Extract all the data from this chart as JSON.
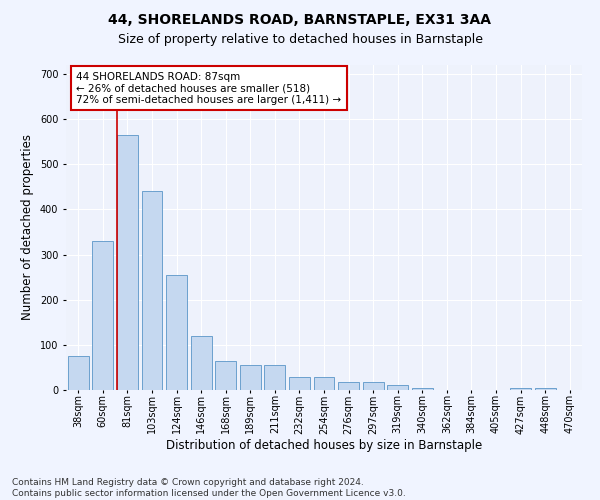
{
  "title": "44, SHORELANDS ROAD, BARNSTAPLE, EX31 3AA",
  "subtitle": "Size of property relative to detached houses in Barnstaple",
  "xlabel": "Distribution of detached houses by size in Barnstaple",
  "ylabel": "Number of detached properties",
  "categories": [
    "38sqm",
    "60sqm",
    "81sqm",
    "103sqm",
    "124sqm",
    "146sqm",
    "168sqm",
    "189sqm",
    "211sqm",
    "232sqm",
    "254sqm",
    "276sqm",
    "297sqm",
    "319sqm",
    "340sqm",
    "362sqm",
    "384sqm",
    "405sqm",
    "427sqm",
    "448sqm",
    "470sqm"
  ],
  "values": [
    75,
    330,
    565,
    440,
    255,
    120,
    65,
    55,
    55,
    28,
    28,
    17,
    17,
    12,
    5,
    0,
    0,
    0,
    5,
    5,
    0
  ],
  "bar_color": "#c5d8f0",
  "bar_edge_color": "#5a96c8",
  "vline_x": 1.575,
  "vline_color": "#cc0000",
  "annotation_text": "44 SHORELANDS ROAD: 87sqm\n← 26% of detached houses are smaller (518)\n72% of semi-detached houses are larger (1,411) →",
  "annotation_box_color": "#ffffff",
  "annotation_box_edge": "#cc0000",
  "ylim": [
    0,
    720
  ],
  "yticks": [
    0,
    100,
    200,
    300,
    400,
    500,
    600,
    700
  ],
  "background_color": "#eef2fc",
  "grid_color": "#ffffff",
  "footer": "Contains HM Land Registry data © Crown copyright and database right 2024.\nContains public sector information licensed under the Open Government Licence v3.0.",
  "title_fontsize": 10,
  "subtitle_fontsize": 9,
  "ylabel_fontsize": 8.5,
  "xlabel_fontsize": 8.5,
  "tick_fontsize": 7,
  "annot_fontsize": 7.5,
  "footer_fontsize": 6.5
}
